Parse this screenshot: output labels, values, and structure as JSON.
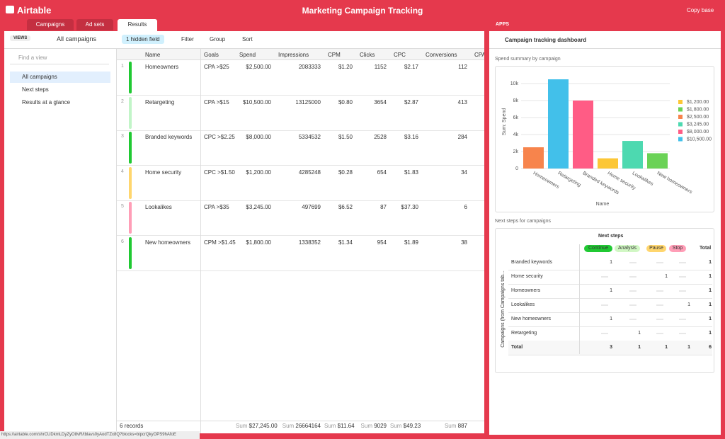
{
  "header": {
    "logo": "Airtable",
    "title": "Marketing Campaign Tracking",
    "copy": "Copy base"
  },
  "tabs": [
    "Campaigns",
    "Ad sets",
    "Results"
  ],
  "toolbar": {
    "views": "VIEWS",
    "current_view": "All campaigns",
    "hidden": "1 hidden field",
    "filter": "Filter",
    "group": "Group",
    "sort": "Sort"
  },
  "sidebar": {
    "find": "Find a view",
    "views": [
      "All campaigns",
      "Next steps",
      "Results at a glance"
    ]
  },
  "table": {
    "columns": [
      "Name",
      "Goals",
      "Spend",
      "Impressions",
      "CPM",
      "Clicks",
      "CPC",
      "Conversions",
      "CPA"
    ],
    "rows": [
      [
        "1",
        "Homeowners",
        "CPA >$25",
        "$2,500.00",
        2083333,
        "$1.20",
        1152,
        "$2.17",
        112
      ],
      [
        "2",
        "Retargeting",
        "CPA >$15",
        "$10,500.00",
        13125000,
        "$0.80",
        3654,
        "$2.87",
        413
      ],
      [
        "3",
        "Branded keywords",
        "CPC >$2.25",
        "$8,000.00",
        5334532,
        "$1.50",
        2528,
        "$3.16",
        284
      ],
      [
        "4",
        "Home security",
        "CPC >$1.50",
        "$1,200.00",
        4285248,
        "$0.28",
        654,
        "$1.83",
        34
      ],
      [
        "5",
        "Lookalikes",
        "CPA >$35",
        "$3,245.00",
        497699,
        "$6.52",
        87,
        "$37.30",
        6
      ],
      [
        "6",
        "New homeowners",
        "CPM >$1.45",
        "$1,800.00",
        1338352,
        "$1.34",
        954,
        "$1.89",
        38
      ]
    ],
    "row_colors": [
      "#20c933",
      "#c2f5c8",
      "#20c933",
      "#ffd66e",
      "#ff9eb7",
      "#20c933"
    ],
    "records": "6 records",
    "sum_label": "Sum",
    "sums": [
      "$27,245.00",
      "26664164",
      "$11.64",
      "9029",
      "$49.23",
      "887"
    ]
  },
  "status_url": "https://airtable.com/shrCUDkmLDyZyO8vR/tblavs0yAodTZx8Q?blocks=bipcrQkyOPS9hAfoE",
  "apps": {
    "label": "APPS",
    "dashboard": "Campaign tracking dashboard"
  },
  "chart": {
    "type": "bar",
    "title": "Spend summary by campaign",
    "y_label": "Sum: Spend",
    "x_label": "Name",
    "categories": [
      "Homeowners",
      "Retargeting",
      "Branded keywords",
      "Home security",
      "Lookalikes",
      "New homeowners"
    ],
    "values": [
      2500,
      10500,
      8000,
      1200,
      3245,
      1800
    ],
    "colors": [
      "#f7844c",
      "#42c0ea",
      "#ff5c85",
      "#fcc736",
      "#4dd9b0",
      "#6ad256"
    ],
    "ylim": [
      0,
      11000
    ],
    "yticks": [
      0,
      {
        "value": 2000,
        "label": "2k"
      },
      {
        "value": 4000,
        "label": "4k"
      },
      {
        "value": 6000,
        "label": "6k"
      },
      {
        "value": 8000,
        "label": "8k"
      },
      {
        "value": 10000,
        "label": "10k"
      }
    ],
    "legend": [
      {
        "label": "$1,200.00",
        "color": "#fcc736"
      },
      {
        "label": "$1,800.00",
        "color": "#6ad256"
      },
      {
        "label": "$2,500.00",
        "color": "#f7844c"
      },
      {
        "label": "$3,245.00",
        "color": "#4dd9b0"
      },
      {
        "label": "$8,000.00",
        "color": "#ff5c85"
      },
      {
        "label": "$10,500.00",
        "color": "#42c0ea"
      }
    ]
  },
  "pivot": {
    "title": "Next steps for campaigns",
    "header": "Next steps",
    "row_axis": "Campaigns (from Campaigns tab...",
    "columns": [
      "Continue",
      "Analysis",
      "Pause",
      "Stop"
    ],
    "column_colors": [
      "#20c933",
      "#d1f7c4",
      "#ffd66e",
      "#ff9eb7"
    ],
    "total": "Total",
    "rows": [
      {
        "name": "Branded keywords",
        "values": [
          1,
          null,
          null,
          null,
          1
        ]
      },
      {
        "name": "Home security",
        "values": [
          null,
          null,
          1,
          null,
          1
        ]
      },
      {
        "name": "Homeowners",
        "values": [
          1,
          null,
          null,
          null,
          1
        ]
      },
      {
        "name": "Lookalikes",
        "values": [
          null,
          null,
          null,
          1,
          1
        ]
      },
      {
        "name": "New homeowners",
        "values": [
          1,
          null,
          null,
          null,
          1
        ]
      },
      {
        "name": "Retargeting",
        "values": [
          null,
          1,
          null,
          null,
          1
        ]
      }
    ],
    "totals": [
      3,
      1,
      1,
      1,
      6
    ]
  }
}
